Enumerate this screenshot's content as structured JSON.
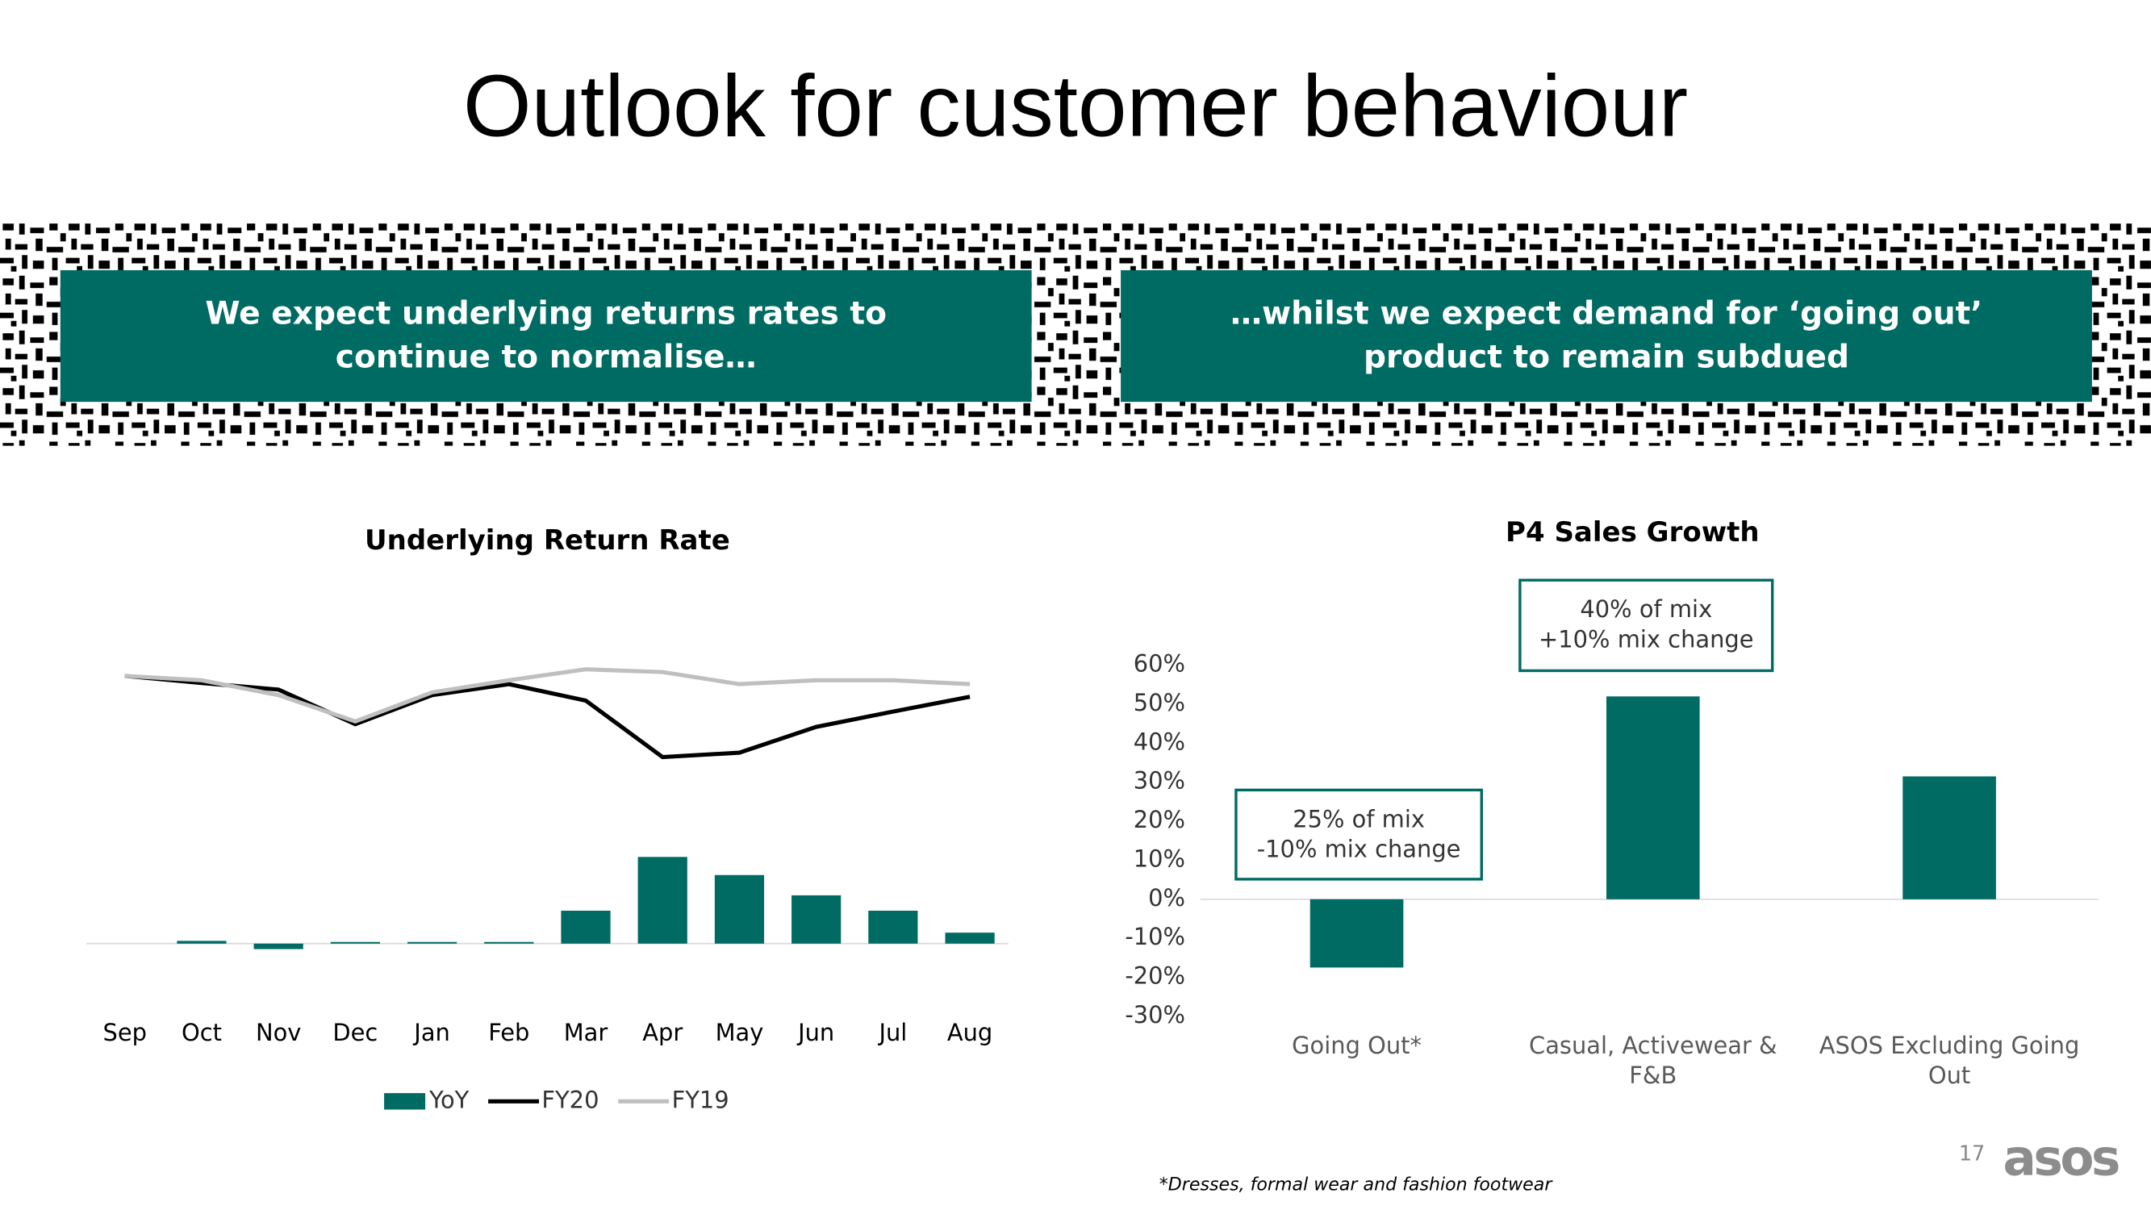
{
  "title": "Outlook for customer behaviour",
  "banners": [
    [
      "We expect underlying returns rates to",
      "continue to normalise…"
    ],
    [
      "…whilst we expect demand for ‘going out’",
      "product to remain subdued"
    ]
  ],
  "chart_data": [
    {
      "type": "combo",
      "title": "Underlying Return Rate",
      "categories": [
        "Sep",
        "Oct",
        "Nov",
        "Dec",
        "Jan",
        "Feb",
        "Mar",
        "Apr",
        "May",
        "Jun",
        "Jul",
        "Aug"
      ],
      "ylim": [
        -13,
        57
      ],
      "legend": "bottom",
      "series": [
        {
          "name": "YoY",
          "type": "bar",
          "color": "#006b63",
          "values": [
            0,
            0.5,
            -1,
            0.3,
            0.3,
            0.3,
            6,
            15.8,
            12.5,
            8.8,
            6,
            2
          ]
        },
        {
          "name": "FY20",
          "type": "line",
          "color": "#000000",
          "values": [
            48.8,
            47.5,
            46.3,
            40,
            45.3,
            47.3,
            44.3,
            34,
            34.8,
            39.5,
            42.3,
            45
          ]
        },
        {
          "name": "FY19",
          "type": "line",
          "color": "#bfbfbf",
          "values": [
            48.8,
            48,
            45.3,
            40.5,
            45.8,
            48,
            50,
            49.5,
            47.3,
            48,
            48,
            47.3
          ]
        }
      ]
    },
    {
      "type": "bar",
      "title": "P4 Sales Growth",
      "categories": [
        "Going Out*",
        "Casual, Activewear & F&B",
        "ASOS Excluding Going Out"
      ],
      "values": [
        -17.5,
        52,
        31.5
      ],
      "color": "#006b63",
      "ylim": [
        -30,
        60
      ],
      "grid": false,
      "yticks": [
        {
          "value": 60,
          "label": "60%"
        },
        {
          "value": 50,
          "label": "50%"
        },
        {
          "value": 40,
          "label": "40%"
        },
        {
          "value": 30,
          "label": "30%"
        },
        {
          "value": 20,
          "label": "20%"
        },
        {
          "value": 10,
          "label": "10%"
        },
        {
          "value": 0,
          "label": "0%"
        },
        {
          "value": -10,
          "label": "-10%"
        },
        {
          "value": -20,
          "label": "-20%"
        },
        {
          "value": -30,
          "label": "-30%"
        }
      ],
      "annotations": [
        [
          "25% of mix",
          "-10% mix change"
        ],
        [
          "40% of mix",
          "+10% mix change"
        ]
      ]
    }
  ],
  "footnote": "*Dresses, formal wear and fashion footwear",
  "page_number": "17",
  "logo": "asos"
}
